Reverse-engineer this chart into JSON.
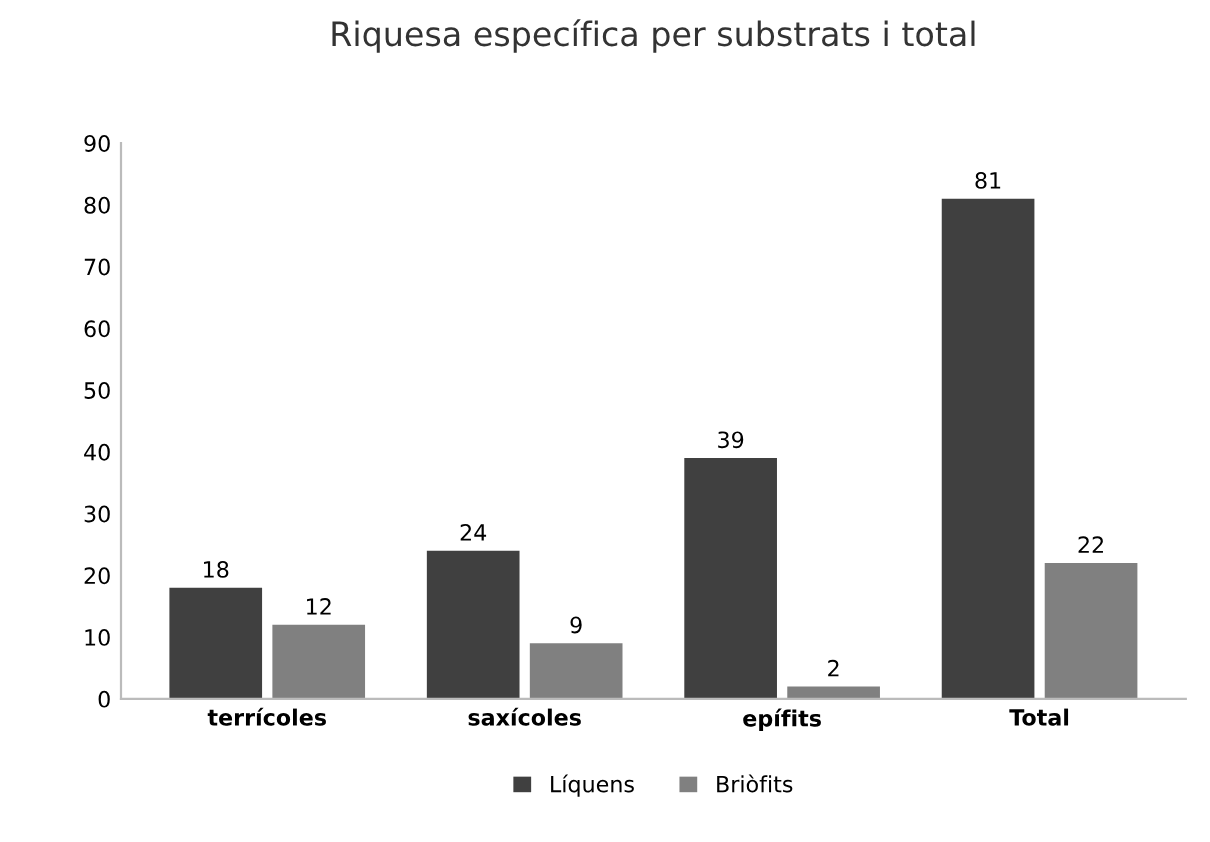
{
  "chart_data": {
    "type": "bar",
    "title": "Riquesa específica per substrats i total",
    "categories": [
      "terrícoles",
      "saxícoles",
      "epífits",
      "Total"
    ],
    "series": [
      {
        "name": "Líquens",
        "color": "#404040",
        "values": [
          18,
          24,
          39,
          81
        ]
      },
      {
        "name": "Briòfits",
        "color": "#808080",
        "values": [
          12,
          9,
          2,
          22
        ]
      }
    ],
    "ylim": [
      0,
      90
    ],
    "yticks": [
      0,
      10,
      20,
      30,
      40,
      50,
      60,
      70,
      80,
      90
    ],
    "data_labels": true,
    "legend": "bottom",
    "grid": false
  }
}
